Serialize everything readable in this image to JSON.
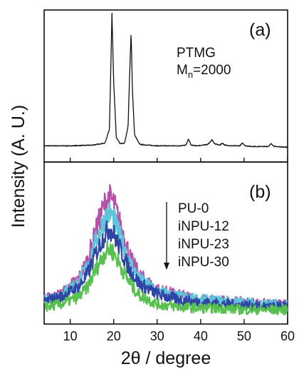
{
  "chart_data": [
    {
      "type": "line",
      "panel_label": "(a)",
      "annotation_lines": [
        "PTMG",
        "M",
        "n",
        "=2000"
      ],
      "xlim": [
        4,
        60
      ],
      "ylim": [
        0,
        1
      ],
      "series": [
        {
          "color": "#111111",
          "x": [
            4,
            10,
            15,
            18,
            19.0,
            19.3,
            19.6,
            20.0,
            20.6,
            21.5,
            22.5,
            23.3,
            23.7,
            24.0,
            24.3,
            24.8,
            26,
            30,
            35,
            36.6,
            37.2,
            37.8,
            39,
            40.5,
            41.5,
            42.0,
            42.6,
            43.2,
            44.4,
            45.0,
            45.6,
            47,
            49.0,
            49.6,
            50.3,
            52,
            55.5,
            56.2,
            57,
            60
          ],
          "y": [
            0.04,
            0.04,
            0.045,
            0.06,
            0.16,
            0.55,
            1.0,
            0.5,
            0.1,
            0.055,
            0.06,
            0.18,
            0.6,
            0.87,
            0.45,
            0.12,
            0.05,
            0.04,
            0.04,
            0.045,
            0.09,
            0.045,
            0.04,
            0.045,
            0.05,
            0.06,
            0.085,
            0.055,
            0.045,
            0.06,
            0.045,
            0.04,
            0.04,
            0.06,
            0.04,
            0.035,
            0.035,
            0.055,
            0.035,
            0.03
          ]
        }
      ]
    },
    {
      "type": "line",
      "panel_label": "(b)",
      "xlabel_parts": [
        "2θ",
        " / degree"
      ],
      "ylabel": "Intensity (A. U.)",
      "x_ticks": [
        10,
        20,
        30,
        40,
        50,
        60
      ],
      "xlim": [
        4,
        60
      ],
      "ylim": [
        0,
        1
      ],
      "legend_order": [
        "PU-0",
        "iNPU-12",
        "iNPU-23",
        "iNPU-30"
      ],
      "series": [
        {
          "name": "PU-0",
          "color": "#b353a8",
          "x": [
            4,
            8,
            12,
            14,
            16,
            18,
            19,
            20,
            22,
            24,
            26,
            30,
            35,
            40,
            45,
            50,
            55,
            60
          ],
          "y": [
            0.1,
            0.14,
            0.25,
            0.38,
            0.6,
            0.78,
            0.82,
            0.78,
            0.58,
            0.38,
            0.27,
            0.17,
            0.13,
            0.1,
            0.09,
            0.08,
            0.07,
            0.06
          ]
        },
        {
          "name": "iNPU-12",
          "color": "#5ec4da",
          "x": [
            4,
            8,
            12,
            14,
            16,
            18,
            19,
            20,
            22,
            24,
            26,
            30,
            35,
            40,
            45,
            50,
            55,
            60
          ],
          "y": [
            0.1,
            0.14,
            0.23,
            0.34,
            0.52,
            0.67,
            0.71,
            0.67,
            0.5,
            0.34,
            0.24,
            0.16,
            0.12,
            0.1,
            0.09,
            0.08,
            0.07,
            0.06
          ]
        },
        {
          "name": "iNPU-23",
          "color": "#2e45a3",
          "x": [
            4,
            8,
            12,
            14,
            16,
            18,
            19,
            20,
            22,
            24,
            26,
            30,
            35,
            40,
            45,
            50,
            55,
            60
          ],
          "y": [
            0.09,
            0.12,
            0.19,
            0.28,
            0.43,
            0.56,
            0.6,
            0.56,
            0.42,
            0.29,
            0.21,
            0.14,
            0.1,
            0.08,
            0.07,
            0.06,
            0.05,
            0.05
          ]
        },
        {
          "name": "iNPU-30",
          "color": "#58c04e",
          "x": [
            4,
            8,
            12,
            14,
            16,
            18,
            19,
            20,
            22,
            24,
            26,
            30,
            35,
            40,
            45,
            50,
            55,
            60
          ],
          "y": [
            0.05,
            0.07,
            0.12,
            0.19,
            0.32,
            0.43,
            0.46,
            0.43,
            0.31,
            0.2,
            0.13,
            0.07,
            0.05,
            0.04,
            0.04,
            0.03,
            0.03,
            0.03
          ]
        }
      ]
    }
  ]
}
